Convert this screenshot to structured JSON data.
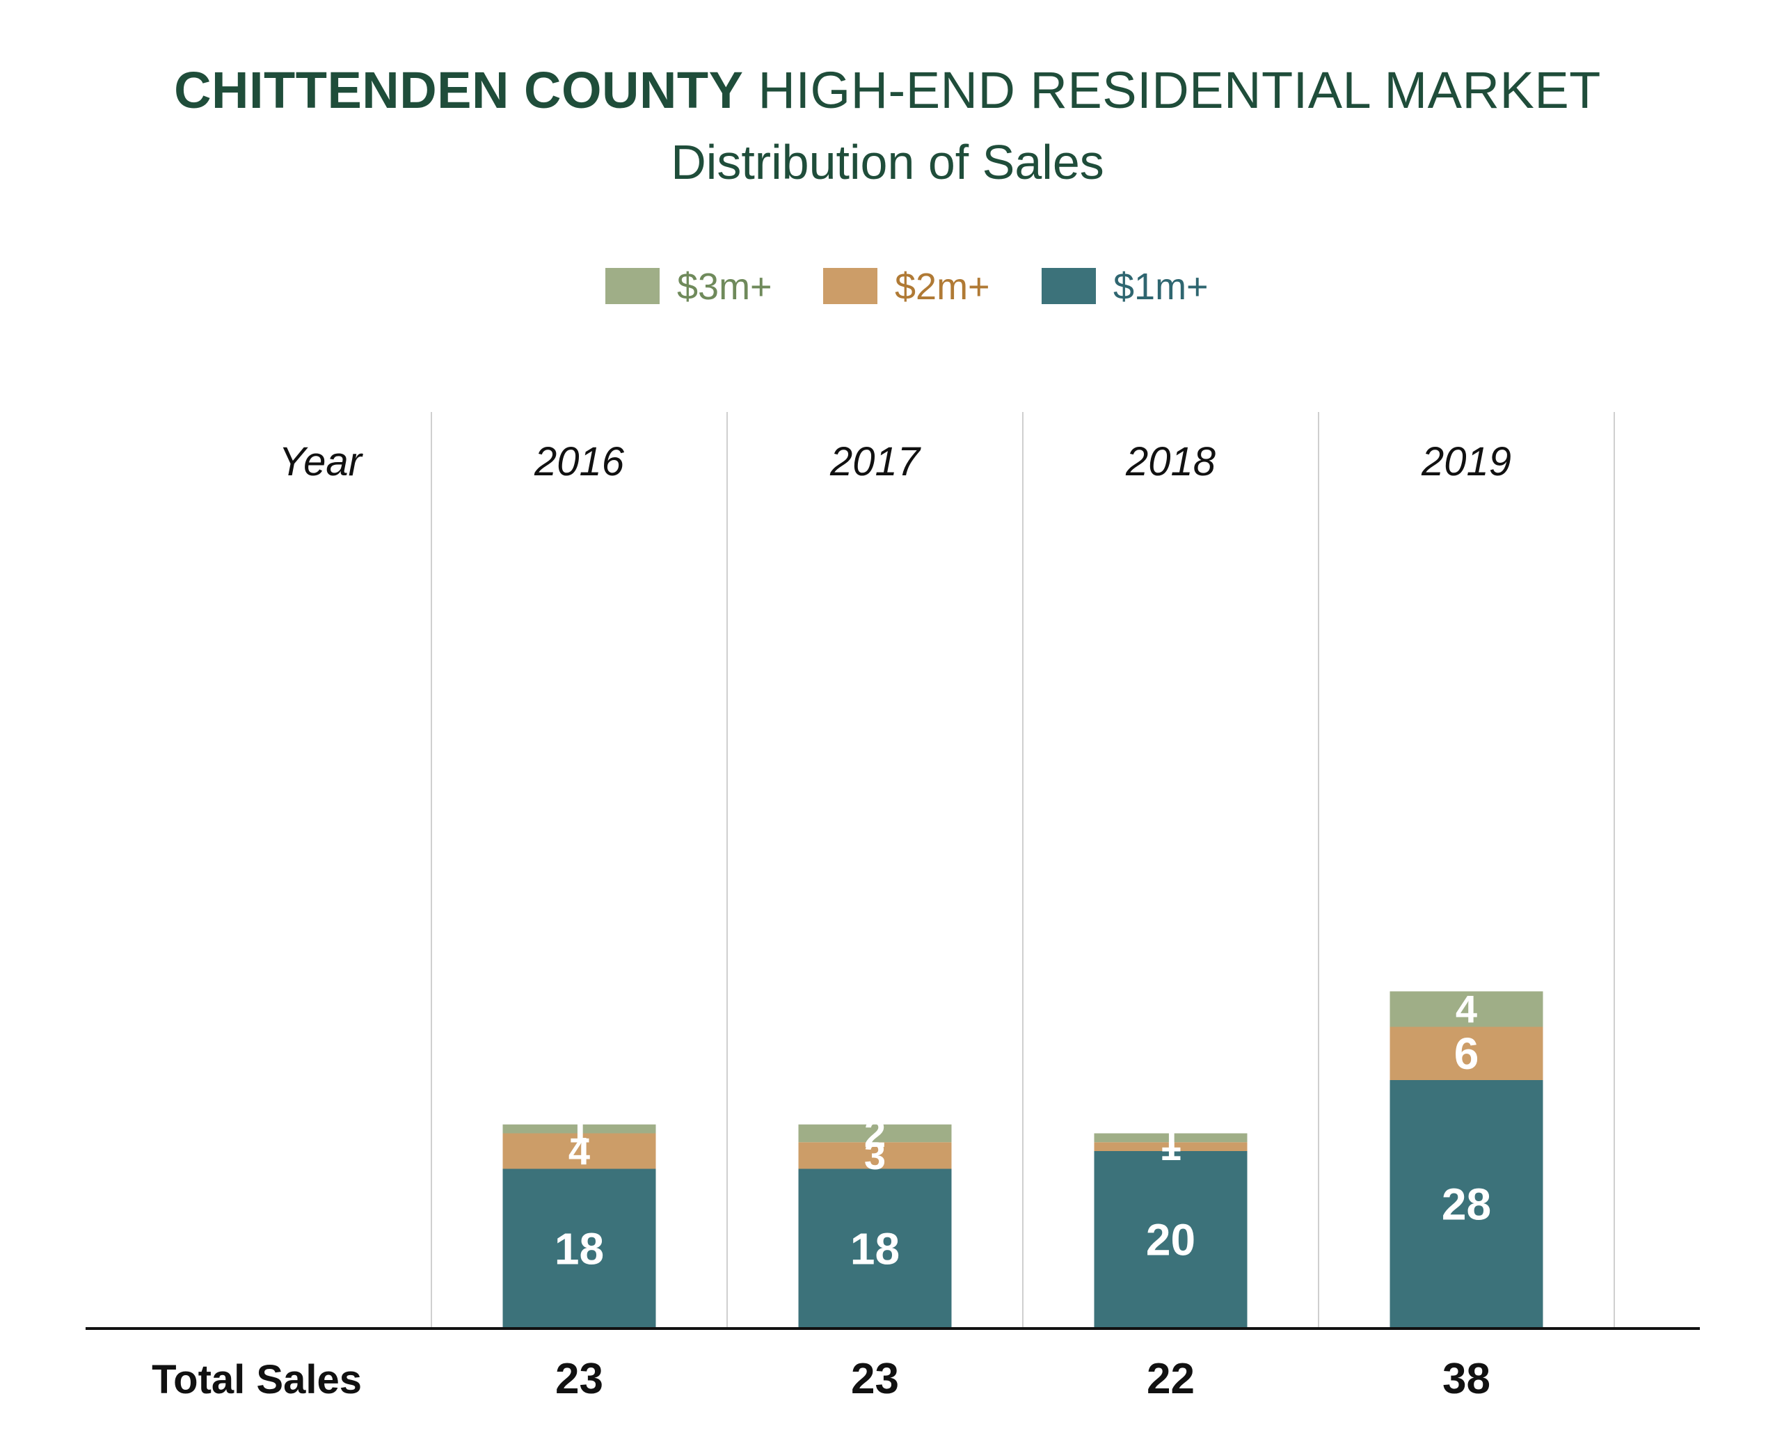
{
  "chart_data": {
    "type": "bar",
    "stacked": true,
    "title_bold": "CHITTENDEN COUNTY",
    "title_rest": "HIGH-END RESIDENTIAL MARKET",
    "subtitle": "Distribution of Sales",
    "year_header": "Year",
    "total_label": "Total Sales",
    "categories": [
      "2016",
      "2017",
      "2018",
      "2019"
    ],
    "series": [
      {
        "name": "$1m+",
        "color": "#3c727a",
        "values": [
          18,
          18,
          20,
          28
        ]
      },
      {
        "name": "$2m+",
        "color": "#cc9d68",
        "values": [
          4,
          3,
          1,
          6
        ]
      },
      {
        "name": "$3m+",
        "color": "#9fae87",
        "values": [
          1,
          2,
          1,
          4
        ]
      }
    ],
    "totals": [
      "23",
      "23",
      "22",
      "38"
    ],
    "legend_order": [
      2,
      1,
      0
    ],
    "legend_placement": "top-center",
    "grid": false
  }
}
